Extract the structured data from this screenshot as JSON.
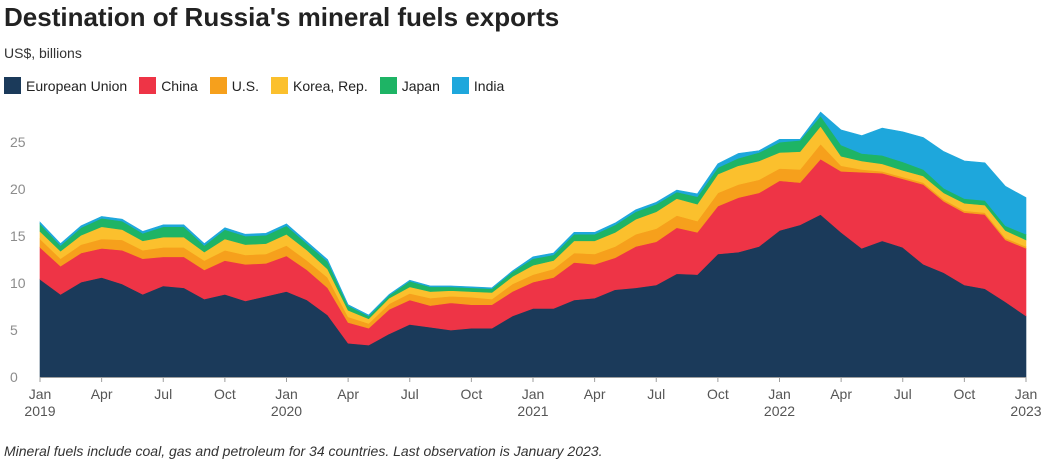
{
  "header": {
    "title": "Destination of Russia's mineral fuels exports",
    "subtitle": "US$, billions"
  },
  "footnote": "Mineral fuels include coal, gas and petroleum for 34 countries. Last observation is January 2023.",
  "chart_data": {
    "type": "area",
    "stacked": true,
    "title": "Destination of Russia's mineral fuels exports",
    "ylabel": "US$, billions",
    "ylim": [
      0,
      28
    ],
    "yticks": [
      0,
      5,
      10,
      15,
      20,
      25
    ],
    "grid": false,
    "legend_position": "top-left",
    "x_tick_labels": [
      {
        "month": "Jan",
        "year": "2019",
        "index": 0
      },
      {
        "month": "Apr",
        "year": "",
        "index": 3
      },
      {
        "month": "Jul",
        "year": "",
        "index": 6
      },
      {
        "month": "Oct",
        "year": "",
        "index": 9
      },
      {
        "month": "Jan",
        "year": "2020",
        "index": 12
      },
      {
        "month": "Apr",
        "year": "",
        "index": 15
      },
      {
        "month": "Jul",
        "year": "",
        "index": 18
      },
      {
        "month": "Oct",
        "year": "",
        "index": 21
      },
      {
        "month": "Jan",
        "year": "2021",
        "index": 24
      },
      {
        "month": "Apr",
        "year": "",
        "index": 27
      },
      {
        "month": "Jul",
        "year": "",
        "index": 30
      },
      {
        "month": "Oct",
        "year": "",
        "index": 33
      },
      {
        "month": "Jan",
        "year": "2022",
        "index": 36
      },
      {
        "month": "Apr",
        "year": "",
        "index": 39
      },
      {
        "month": "Jul",
        "year": "",
        "index": 42
      },
      {
        "month": "Oct",
        "year": "",
        "index": 45
      },
      {
        "month": "Jan",
        "year": "2023",
        "index": 48
      }
    ],
    "x": [
      "2019-01",
      "2019-02",
      "2019-03",
      "2019-04",
      "2019-05",
      "2019-06",
      "2019-07",
      "2019-08",
      "2019-09",
      "2019-10",
      "2019-11",
      "2019-12",
      "2020-01",
      "2020-02",
      "2020-03",
      "2020-04",
      "2020-05",
      "2020-06",
      "2020-07",
      "2020-08",
      "2020-09",
      "2020-10",
      "2020-11",
      "2020-12",
      "2021-01",
      "2021-02",
      "2021-03",
      "2021-04",
      "2021-05",
      "2021-06",
      "2021-07",
      "2021-08",
      "2021-09",
      "2021-10",
      "2021-11",
      "2021-12",
      "2022-01",
      "2022-02",
      "2022-03",
      "2022-04",
      "2022-05",
      "2022-06",
      "2022-07",
      "2022-08",
      "2022-09",
      "2022-10",
      "2022-11",
      "2022-12",
      "2023-01"
    ],
    "series": [
      {
        "name": "European Union",
        "color": "#1b3a5a",
        "values": [
          10.4,
          8.8,
          10.1,
          10.6,
          9.9,
          8.8,
          9.7,
          9.5,
          8.3,
          8.8,
          8.1,
          8.6,
          9.1,
          8.2,
          6.6,
          3.6,
          3.4,
          4.6,
          5.6,
          5.3,
          5.0,
          5.2,
          5.2,
          6.5,
          7.3,
          7.3,
          8.2,
          8.4,
          9.3,
          9.5,
          9.8,
          11.0,
          10.9,
          13.1,
          13.3,
          13.9,
          15.6,
          16.2,
          17.3,
          15.4,
          13.7,
          14.5,
          13.8,
          12.0,
          11.1,
          9.8,
          9.4,
          8.0,
          6.5
        ]
      },
      {
        "name": "China",
        "color": "#ee3446",
        "values": [
          3.4,
          3.0,
          3.1,
          3.1,
          3.6,
          3.8,
          3.1,
          3.3,
          3.1,
          3.6,
          3.9,
          3.5,
          3.8,
          3.2,
          2.9,
          2.2,
          1.8,
          2.6,
          2.6,
          2.3,
          2.9,
          2.5,
          2.5,
          2.6,
          2.8,
          3.3,
          4.0,
          3.6,
          3.4,
          4.4,
          4.6,
          4.9,
          4.5,
          5.1,
          5.8,
          5.7,
          5.3,
          4.5,
          5.9,
          6.5,
          8.1,
          7.2,
          7.3,
          8.5,
          7.6,
          7.7,
          7.9,
          6.6,
          7.2
        ]
      },
      {
        "name": "U.S.",
        "color": "#f6a01c",
        "values": [
          0.9,
          0.8,
          0.9,
          1.0,
          1.1,
          0.9,
          1.0,
          1.0,
          1.0,
          1.1,
          1.0,
          1.0,
          1.1,
          1.0,
          1.1,
          0.6,
          0.5,
          0.6,
          0.7,
          0.8,
          0.7,
          0.8,
          0.6,
          0.8,
          0.8,
          0.9,
          1.0,
          1.1,
          1.2,
          1.3,
          1.4,
          1.3,
          1.2,
          1.4,
          1.4,
          1.4,
          1.3,
          1.4,
          1.6,
          0.6,
          0.3,
          0.2,
          0.2,
          0.2,
          0.2,
          0.2,
          0.2,
          0.2,
          0.2
        ]
      },
      {
        "name": "Korea, Rep.",
        "color": "#fbc02d",
        "values": [
          0.8,
          0.8,
          1.0,
          1.3,
          1.1,
          1.0,
          1.1,
          1.1,
          0.9,
          1.2,
          1.1,
          1.1,
          1.2,
          1.1,
          0.9,
          0.7,
          0.5,
          0.6,
          0.7,
          0.7,
          0.6,
          0.6,
          0.7,
          0.8,
          1.0,
          0.9,
          1.3,
          1.4,
          1.5,
          1.6,
          1.8,
          1.8,
          1.8,
          2.0,
          2.0,
          2.0,
          1.7,
          1.9,
          1.9,
          1.0,
          0.9,
          0.8,
          0.7,
          0.7,
          0.7,
          0.8,
          0.8,
          0.8,
          0.7
        ]
      },
      {
        "name": "Japan",
        "color": "#1eb465",
        "values": [
          0.8,
          0.6,
          0.8,
          0.9,
          0.9,
          0.8,
          1.1,
          1.1,
          0.7,
          1.0,
          0.9,
          0.9,
          0.9,
          0.7,
          0.8,
          0.5,
          0.3,
          0.3,
          0.6,
          0.5,
          0.4,
          0.4,
          0.4,
          0.5,
          0.7,
          0.6,
          0.7,
          0.7,
          0.8,
          0.8,
          0.8,
          0.7,
          0.8,
          0.7,
          0.8,
          0.9,
          1.1,
          1.2,
          1.1,
          1.2,
          0.8,
          0.9,
          0.9,
          0.7,
          0.5,
          0.5,
          0.5,
          0.5,
          0.6
        ]
      },
      {
        "name": "India",
        "color": "#1ea7dc",
        "values": [
          0.2,
          0.2,
          0.2,
          0.2,
          0.2,
          0.2,
          0.2,
          0.2,
          0.2,
          0.2,
          0.2,
          0.2,
          0.2,
          0.2,
          0.2,
          0.1,
          0.1,
          0.1,
          0.1,
          0.1,
          0.1,
          0.1,
          0.1,
          0.1,
          0.2,
          0.2,
          0.2,
          0.2,
          0.2,
          0.2,
          0.2,
          0.2,
          0.3,
          0.4,
          0.5,
          0.2,
          0.3,
          0.1,
          0.4,
          1.6,
          1.9,
          2.9,
          3.2,
          3.4,
          3.9,
          4.0,
          4.0,
          4.2,
          3.9
        ]
      }
    ]
  }
}
